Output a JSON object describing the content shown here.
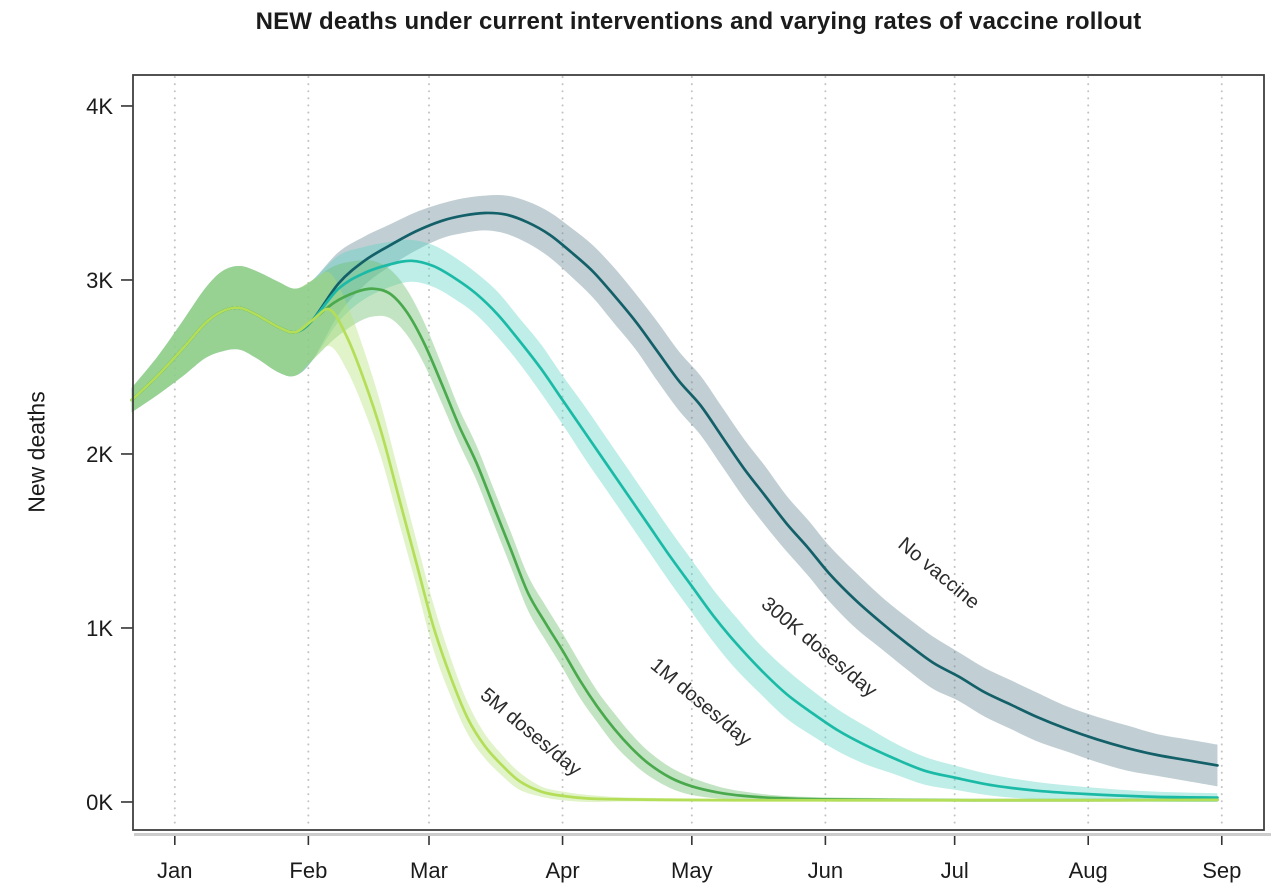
{
  "title": "NEW deaths under current interventions and varying rates of vaccine rollout",
  "chart_data": {
    "type": "line",
    "title": "NEW deaths under current interventions and varying rates of vaccine rollout",
    "xlabel": "",
    "ylabel": "New deaths",
    "y_unit": "thousands of new deaths per day",
    "x_unit": "days since Jan 1",
    "grid": {
      "vertical_dotted": true,
      "horizontal": false,
      "color": "#c3c3c3"
    },
    "frame_color": "#3f3f3f",
    "shadow_color": "#cccccc",
    "legend_position": "labels on curves, rotated 40deg",
    "x_axis": {
      "lim": [
        -9.7,
        252.8
      ],
      "ticks": [
        {
          "day": 0,
          "label": "Jan"
        },
        {
          "day": 31,
          "label": "Feb"
        },
        {
          "day": 59,
          "label": "Mar"
        },
        {
          "day": 90,
          "label": "Apr"
        },
        {
          "day": 120,
          "label": "May"
        },
        {
          "day": 151,
          "label": "Jun"
        },
        {
          "day": 181,
          "label": "Jul"
        },
        {
          "day": 212,
          "label": "Aug"
        },
        {
          "day": 243,
          "label": "Sep"
        }
      ]
    },
    "y_axis": {
      "lim": [
        -0.161,
        4.178
      ],
      "ticks": [
        {
          "value": 0,
          "label": "0K"
        },
        {
          "value": 1,
          "label": "1K"
        },
        {
          "value": 2,
          "label": "2K"
        },
        {
          "value": 3,
          "label": "3K"
        },
        {
          "value": 4,
          "label": "4K"
        }
      ]
    },
    "series": [
      {
        "name": "no-vaccine",
        "label": "No vaccine",
        "color": "#136069",
        "band_color": "rgba(100,135,148,0.40)",
        "label_day": 176.4,
        "label_value": 1.287,
        "label_rotation_deg": 40,
        "points_format": [
          "day",
          "value_K",
          "band_halfwidth_K"
        ],
        "points": [
          [
            -10,
            2.31,
            0.07
          ],
          [
            -4,
            2.45,
            0.11
          ],
          [
            2,
            2.61,
            0.16
          ],
          [
            7,
            2.75,
            0.2
          ],
          [
            11,
            2.82,
            0.23
          ],
          [
            15,
            2.84,
            0.24
          ],
          [
            19,
            2.8,
            0.25
          ],
          [
            24,
            2.73,
            0.26
          ],
          [
            28,
            2.7,
            0.25
          ],
          [
            32,
            2.77,
            0.23
          ],
          [
            38,
            2.98,
            0.18
          ],
          [
            44,
            3.11,
            0.14
          ],
          [
            50,
            3.2,
            0.12
          ],
          [
            56,
            3.28,
            0.11
          ],
          [
            62,
            3.34,
            0.1
          ],
          [
            67,
            3.37,
            0.1
          ],
          [
            72,
            3.385,
            0.1
          ],
          [
            77,
            3.375,
            0.11
          ],
          [
            82,
            3.33,
            0.12
          ],
          [
            87,
            3.26,
            0.13
          ],
          [
            92,
            3.16,
            0.14
          ],
          [
            97,
            3.05,
            0.15
          ],
          [
            102,
            2.91,
            0.16
          ],
          [
            107,
            2.76,
            0.16
          ],
          [
            112,
            2.59,
            0.17
          ],
          [
            117,
            2.42,
            0.17
          ],
          [
            122,
            2.28,
            0.17
          ],
          [
            127,
            2.1,
            0.17
          ],
          [
            132,
            1.92,
            0.17
          ],
          [
            137,
            1.76,
            0.17
          ],
          [
            142,
            1.6,
            0.16
          ],
          [
            147,
            1.46,
            0.16
          ],
          [
            152,
            1.31,
            0.16
          ],
          [
            158,
            1.16,
            0.16
          ],
          [
            164,
            1.03,
            0.15
          ],
          [
            170,
            0.91,
            0.15
          ],
          [
            176,
            0.8,
            0.15
          ],
          [
            182,
            0.72,
            0.14
          ],
          [
            188,
            0.63,
            0.14
          ],
          [
            194,
            0.56,
            0.14
          ],
          [
            200,
            0.49,
            0.14
          ],
          [
            207,
            0.42,
            0.13
          ],
          [
            214,
            0.36,
            0.13
          ],
          [
            221,
            0.31,
            0.13
          ],
          [
            228,
            0.27,
            0.12
          ],
          [
            235,
            0.24,
            0.12
          ],
          [
            242,
            0.21,
            0.12
          ]
        ]
      },
      {
        "name": "300k-doses-day",
        "label": "300K doses/day",
        "color": "#1bbaa7",
        "band_color": "rgba(85,210,192,0.38)",
        "label_day": 148.6,
        "label_value": 0.862,
        "label_rotation_deg": 40,
        "points_format": [
          "day",
          "value_K",
          "band_halfwidth_K"
        ],
        "points": [
          [
            -10,
            2.31,
            0.07
          ],
          [
            -4,
            2.45,
            0.11
          ],
          [
            2,
            2.61,
            0.16
          ],
          [
            7,
            2.75,
            0.2
          ],
          [
            11,
            2.82,
            0.23
          ],
          [
            15,
            2.84,
            0.24
          ],
          [
            19,
            2.8,
            0.25
          ],
          [
            24,
            2.73,
            0.26
          ],
          [
            28,
            2.7,
            0.25
          ],
          [
            32,
            2.77,
            0.23
          ],
          [
            38,
            2.95,
            0.19
          ],
          [
            44,
            3.04,
            0.15
          ],
          [
            50,
            3.09,
            0.13
          ],
          [
            55,
            3.11,
            0.12
          ],
          [
            60,
            3.08,
            0.12
          ],
          [
            65,
            3.01,
            0.12
          ],
          [
            70,
            2.92,
            0.12
          ],
          [
            75,
            2.8,
            0.13
          ],
          [
            80,
            2.65,
            0.13
          ],
          [
            85,
            2.49,
            0.14
          ],
          [
            90,
            2.31,
            0.14
          ],
          [
            95,
            2.13,
            0.15
          ],
          [
            100,
            1.95,
            0.15
          ],
          [
            105,
            1.77,
            0.15
          ],
          [
            110,
            1.59,
            0.15
          ],
          [
            115,
            1.41,
            0.15
          ],
          [
            120,
            1.24,
            0.15
          ],
          [
            125,
            1.07,
            0.15
          ],
          [
            130,
            0.92,
            0.15
          ],
          [
            136,
            0.76,
            0.14
          ],
          [
            142,
            0.62,
            0.14
          ],
          [
            148,
            0.51,
            0.13
          ],
          [
            154,
            0.41,
            0.12
          ],
          [
            160,
            0.33,
            0.11
          ],
          [
            167,
            0.25,
            0.09
          ],
          [
            174,
            0.18,
            0.08
          ],
          [
            181,
            0.14,
            0.07
          ],
          [
            190,
            0.095,
            0.06
          ],
          [
            200,
            0.065,
            0.05
          ],
          [
            212,
            0.045,
            0.04
          ],
          [
            227,
            0.03,
            0.03
          ],
          [
            242,
            0.025,
            0.025
          ]
        ]
      },
      {
        "name": "1m-doses-day",
        "label": "1M doses/day",
        "color": "#4aa94d",
        "band_color": "rgba(112,190,112,0.42)",
        "label_day": 121.2,
        "label_value": 0.546,
        "label_rotation_deg": 40,
        "points_format": [
          "day",
          "value_K",
          "band_halfwidth_K"
        ],
        "points": [
          [
            -10,
            2.31,
            0.07
          ],
          [
            -4,
            2.45,
            0.11
          ],
          [
            2,
            2.61,
            0.16
          ],
          [
            7,
            2.75,
            0.2
          ],
          [
            11,
            2.82,
            0.23
          ],
          [
            15,
            2.84,
            0.24
          ],
          [
            19,
            2.8,
            0.25
          ],
          [
            24,
            2.73,
            0.26
          ],
          [
            28,
            2.7,
            0.25
          ],
          [
            32,
            2.77,
            0.23
          ],
          [
            37,
            2.87,
            0.21
          ],
          [
            42,
            2.93,
            0.18
          ],
          [
            46,
            2.95,
            0.16
          ],
          [
            50,
            2.92,
            0.14
          ],
          [
            54,
            2.81,
            0.13
          ],
          [
            58,
            2.63,
            0.12
          ],
          [
            62,
            2.4,
            0.11
          ],
          [
            66,
            2.16,
            0.1
          ],
          [
            70,
            1.95,
            0.1
          ],
          [
            74,
            1.7,
            0.1
          ],
          [
            78,
            1.45,
            0.1
          ],
          [
            82,
            1.2,
            0.1
          ],
          [
            86,
            1.03,
            0.1
          ],
          [
            90,
            0.87,
            0.1
          ],
          [
            94,
            0.7,
            0.1
          ],
          [
            98,
            0.55,
            0.09
          ],
          [
            102,
            0.42,
            0.09
          ],
          [
            106,
            0.31,
            0.08
          ],
          [
            110,
            0.22,
            0.07
          ],
          [
            115,
            0.14,
            0.06
          ],
          [
            120,
            0.09,
            0.05
          ],
          [
            126,
            0.055,
            0.035
          ],
          [
            132,
            0.035,
            0.025
          ],
          [
            140,
            0.022,
            0.015
          ],
          [
            150,
            0.015,
            0.012
          ],
          [
            165,
            0.012,
            0.01
          ],
          [
            185,
            0.01,
            0.008
          ],
          [
            210,
            0.01,
            0.008
          ],
          [
            242,
            0.012,
            0.008
          ]
        ]
      },
      {
        "name": "5m-doses-day",
        "label": "5M doses/day",
        "color": "#b4de58",
        "band_color": "rgba(180,224,120,0.40)",
        "label_day": 81.7,
        "label_value": 0.374,
        "label_rotation_deg": 40,
        "points_format": [
          "day",
          "value_K",
          "band_halfwidth_K"
        ],
        "points": [
          [
            -10,
            2.31,
            0.07
          ],
          [
            -4,
            2.45,
            0.11
          ],
          [
            2,
            2.61,
            0.16
          ],
          [
            7,
            2.75,
            0.2
          ],
          [
            11,
            2.82,
            0.23
          ],
          [
            15,
            2.84,
            0.24
          ],
          [
            19,
            2.8,
            0.25
          ],
          [
            24,
            2.73,
            0.26
          ],
          [
            28,
            2.7,
            0.25
          ],
          [
            32,
            2.77,
            0.23
          ],
          [
            36,
            2.83,
            0.21
          ],
          [
            40,
            2.67,
            0.19
          ],
          [
            44,
            2.42,
            0.17
          ],
          [
            48,
            2.12,
            0.15
          ],
          [
            52,
            1.75,
            0.14
          ],
          [
            56,
            1.38,
            0.13
          ],
          [
            60,
            1.01,
            0.13
          ],
          [
            64,
            0.72,
            0.11
          ],
          [
            68,
            0.48,
            0.09
          ],
          [
            72,
            0.32,
            0.07
          ],
          [
            76,
            0.21,
            0.06
          ],
          [
            80,
            0.12,
            0.05
          ],
          [
            85,
            0.06,
            0.03
          ],
          [
            90,
            0.035,
            0.025
          ],
          [
            96,
            0.02,
            0.02
          ],
          [
            104,
            0.015,
            0.012
          ],
          [
            115,
            0.012,
            0.01
          ],
          [
            130,
            0.01,
            0.008
          ],
          [
            150,
            0.01,
            0.008
          ],
          [
            175,
            0.01,
            0.008
          ],
          [
            200,
            0.01,
            0.008
          ],
          [
            220,
            0.01,
            0.008
          ],
          [
            242,
            0.012,
            0.008
          ]
        ]
      }
    ]
  }
}
